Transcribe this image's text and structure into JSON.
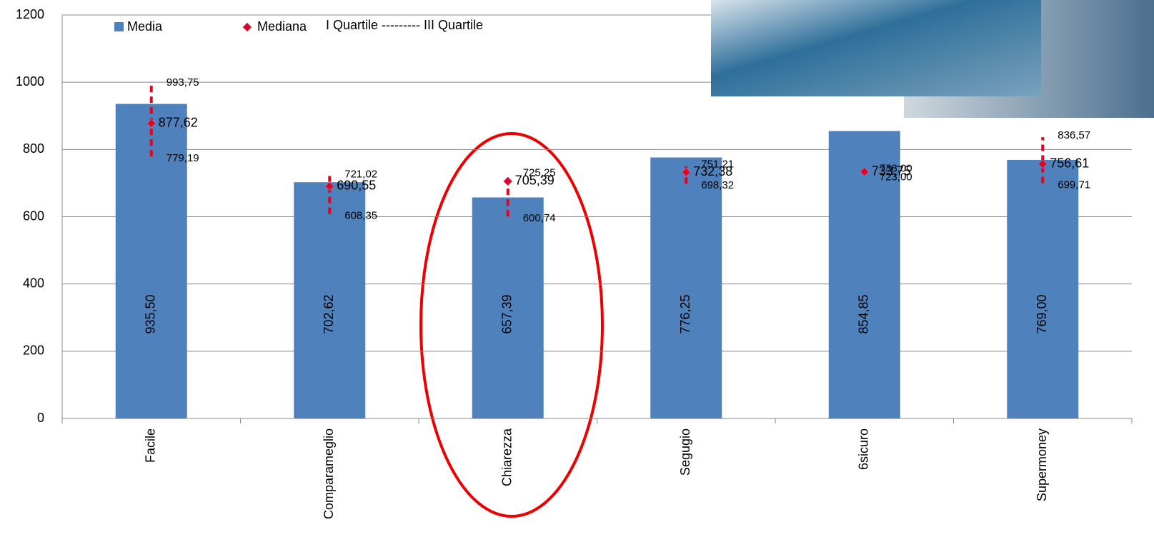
{
  "chart_data": {
    "type": "bar",
    "categories": [
      "Facile",
      "Comparameglio",
      "Chiarezza",
      "Segugio",
      "6sicuro",
      "Supermoney"
    ],
    "series": [
      {
        "name": "Media",
        "color": "#4f81bd",
        "values": [
          935.5,
          702.62,
          657.39,
          776.25,
          854.85,
          769.0
        ],
        "value_labels": [
          "935,50",
          "702,62",
          "657,39",
          "776,25",
          "854,85",
          "769,00"
        ]
      },
      {
        "name": "Mediana",
        "color": "#e8001c",
        "values": [
          877.62,
          690.55,
          705.39,
          732.38,
          733.75,
          756.61
        ],
        "value_labels": [
          "877,62",
          "690,55",
          "705,39",
          "732,38",
          "733,75",
          "756,61"
        ]
      }
    ],
    "quartiles": {
      "label": "I Quartile --------- III Quartile",
      "color": "#e8001c",
      "q1": [
        779.19,
        608.35,
        600.74,
        698.32,
        723.0,
        699.71
      ],
      "q1_labels": [
        "779,19",
        "608,35",
        "600,74",
        "698,32",
        "723,00",
        "699,71"
      ],
      "q3": [
        993.75,
        721.02,
        725.25,
        751.21,
        738.0,
        836.57
      ],
      "q3_labels": [
        "993,75",
        "721,02",
        "725,25",
        "751,21",
        "738,00",
        "836,57"
      ]
    },
    "ylim": [
      0,
      1200
    ],
    "yticks": [
      0,
      200,
      400,
      600,
      800,
      1000,
      1200
    ],
    "grid": true
  }
}
